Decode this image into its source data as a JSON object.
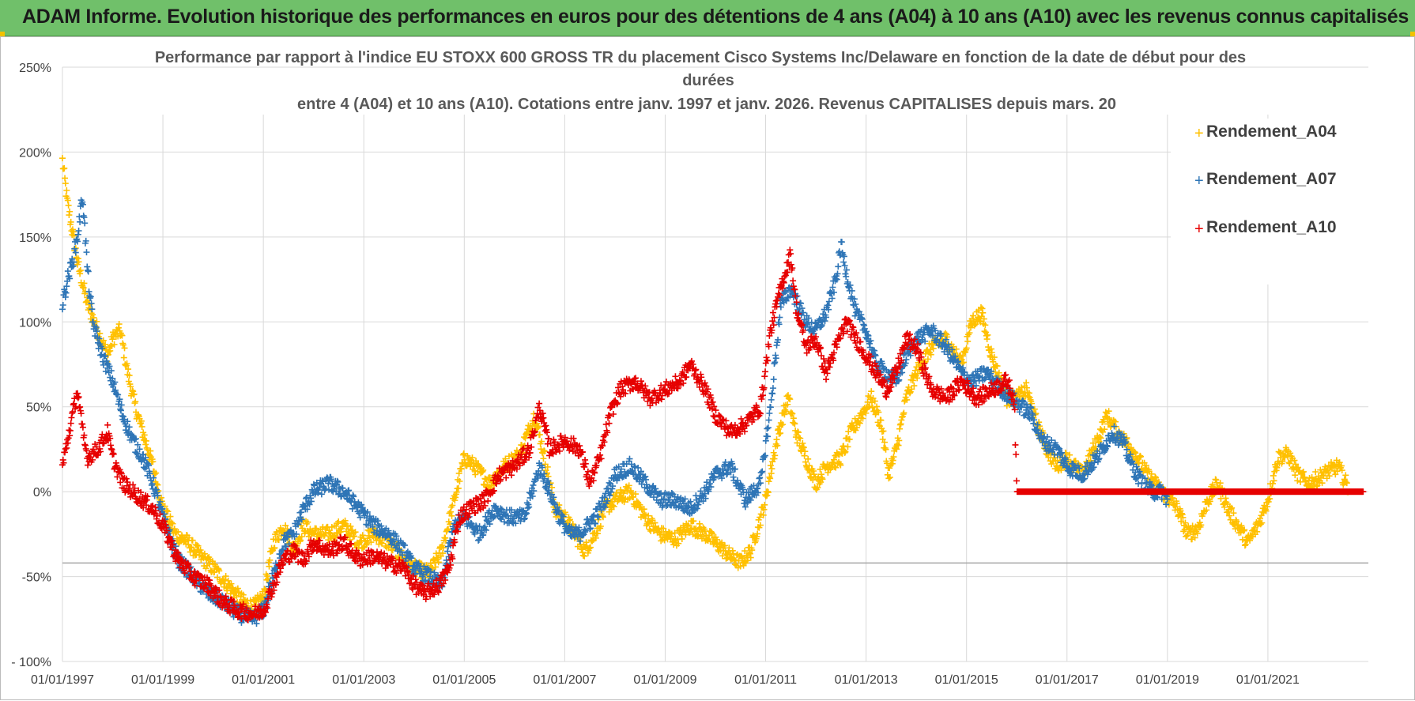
{
  "banner": {
    "title": "ADAM Informe. Evolution historique des performances en euros pour des détentions de 4 ans (A04) à 10 ans (A10) avec les revenus connus capitalisés"
  },
  "colors": {
    "banner_bg": "#70c06a",
    "A04": "#ffc000",
    "A07": "#2e75b6",
    "A10": "#e60000",
    "grid": "#d9d9d9"
  },
  "chart_data": {
    "type": "scatter",
    "title_lines": [
      "Performance par rapport à l'indice EU STOXX 600 GROSS TR  du placement Cisco Systems Inc/Delaware en fonction de la date de début pour des",
      "durées",
      "entre 4 (A04) et 10 ans (A10). Cotations entre janv. 1997 et janv. 2026. Revenus CAPITALISES depuis mars. 20"
    ],
    "xlabel": "",
    "ylabel": "",
    "x_range": [
      1997.0,
      2023.0
    ],
    "x_ticks": [
      1997,
      1999,
      2001,
      2003,
      2005,
      2007,
      2009,
      2011,
      2013,
      2015,
      2017,
      2019,
      2021
    ],
    "x_tick_labels": [
      "01/01/1997",
      "01/01/1999",
      "01/01/2001",
      "01/01/2003",
      "01/01/2005",
      "01/01/2007",
      "01/01/2009",
      "01/01/2011",
      "01/01/2013",
      "01/01/2015",
      "01/01/2017",
      "01/01/2019",
      "01/01/2021"
    ],
    "ylim": [
      -100,
      250
    ],
    "y_ticks": [
      -100,
      -50,
      0,
      50,
      100,
      150,
      200,
      250
    ],
    "y_tick_labels": [
      "- 100%",
      "-50%",
      "0%",
      "50%",
      "100%",
      "150%",
      "200%",
      "250%"
    ],
    "reference_line_y": -42,
    "grid": true,
    "legend_position": "top-right",
    "series": [
      {
        "name": "Rendement_A04",
        "color": "#ffc000",
        "anchors": [
          [
            1997.0,
            195
          ],
          [
            1997.1,
            170
          ],
          [
            1997.3,
            135
          ],
          [
            1997.5,
            110
          ],
          [
            1997.7,
            95
          ],
          [
            1997.9,
            80
          ],
          [
            1998.0,
            90
          ],
          [
            1998.15,
            95
          ],
          [
            1998.3,
            70
          ],
          [
            1998.45,
            50
          ],
          [
            1998.6,
            35
          ],
          [
            1998.8,
            15
          ],
          [
            1999.0,
            -10
          ],
          [
            1999.25,
            -25
          ],
          [
            1999.5,
            -30
          ],
          [
            1999.75,
            -38
          ],
          [
            2000.0,
            -45
          ],
          [
            2000.3,
            -55
          ],
          [
            2000.6,
            -65
          ],
          [
            2000.8,
            -68
          ],
          [
            2001.0,
            -62
          ],
          [
            2001.2,
            -30
          ],
          [
            2001.4,
            -20
          ],
          [
            2001.6,
            -35
          ],
          [
            2001.8,
            -20
          ],
          [
            2002.0,
            -25
          ],
          [
            2002.3,
            -25
          ],
          [
            2002.6,
            -20
          ],
          [
            2002.9,
            -30
          ],
          [
            2003.2,
            -25
          ],
          [
            2003.5,
            -30
          ],
          [
            2003.8,
            -40
          ],
          [
            2004.0,
            -45
          ],
          [
            2004.3,
            -48
          ],
          [
            2004.55,
            -35
          ],
          [
            2004.8,
            -5
          ],
          [
            2005.0,
            20
          ],
          [
            2005.2,
            15
          ],
          [
            2005.5,
            5
          ],
          [
            2005.8,
            15
          ],
          [
            2006.1,
            22
          ],
          [
            2006.4,
            45
          ],
          [
            2006.6,
            20
          ],
          [
            2006.8,
            -10
          ],
          [
            2007.0,
            -15
          ],
          [
            2007.2,
            -25
          ],
          [
            2007.4,
            -35
          ],
          [
            2007.6,
            -25
          ],
          [
            2007.8,
            -10
          ],
          [
            2008.0,
            -5
          ],
          [
            2008.3,
            0
          ],
          [
            2008.6,
            -15
          ],
          [
            2008.9,
            -25
          ],
          [
            2009.2,
            -28
          ],
          [
            2009.5,
            -20
          ],
          [
            2009.8,
            -25
          ],
          [
            2010.0,
            -30
          ],
          [
            2010.3,
            -38
          ],
          [
            2010.5,
            -42
          ],
          [
            2010.7,
            -35
          ],
          [
            2010.9,
            -15
          ],
          [
            2011.0,
            -5
          ],
          [
            2011.15,
            20
          ],
          [
            2011.3,
            40
          ],
          [
            2011.45,
            55
          ],
          [
            2011.6,
            35
          ],
          [
            2011.8,
            20
          ],
          [
            2012.0,
            5
          ],
          [
            2012.2,
            15
          ],
          [
            2012.5,
            20
          ],
          [
            2012.7,
            35
          ],
          [
            2012.9,
            45
          ],
          [
            2013.1,
            55
          ],
          [
            2013.3,
            40
          ],
          [
            2013.45,
            10
          ],
          [
            2013.6,
            25
          ],
          [
            2013.8,
            55
          ],
          [
            2014.0,
            70
          ],
          [
            2014.3,
            85
          ],
          [
            2014.6,
            90
          ],
          [
            2014.9,
            75
          ],
          [
            2015.1,
            100
          ],
          [
            2015.3,
            105
          ],
          [
            2015.5,
            80
          ],
          [
            2015.8,
            55
          ],
          [
            2016.0,
            55
          ],
          [
            2016.2,
            60
          ],
          [
            2016.4,
            40
          ],
          [
            2016.6,
            25
          ],
          [
            2016.8,
            15
          ],
          [
            2017.0,
            20
          ],
          [
            2017.3,
            10
          ],
          [
            2017.6,
            30
          ],
          [
            2017.8,
            45
          ],
          [
            2018.0,
            35
          ],
          [
            2018.3,
            25
          ],
          [
            2018.6,
            10
          ],
          [
            2018.9,
            0
          ],
          [
            2019.2,
            -10
          ],
          [
            2019.4,
            -25
          ],
          [
            2019.6,
            -22
          ],
          [
            2019.8,
            -5
          ],
          [
            2020.0,
            5
          ],
          [
            2020.2,
            -10
          ],
          [
            2020.4,
            -20
          ],
          [
            2020.6,
            -30
          ],
          [
            2020.8,
            -20
          ],
          [
            2021.0,
            -5
          ],
          [
            2021.2,
            20
          ],
          [
            2021.4,
            22
          ],
          [
            2021.6,
            10
          ],
          [
            2021.8,
            5
          ],
          [
            2022.0,
            8
          ],
          [
            2022.2,
            12
          ],
          [
            2022.4,
            15
          ],
          [
            2022.6,
            2
          ]
        ]
      },
      {
        "name": "Rendement_A07",
        "color": "#2e75b6",
        "anchors": [
          [
            1997.0,
            110
          ],
          [
            1997.1,
            125
          ],
          [
            1997.2,
            135
          ],
          [
            1997.3,
            150
          ],
          [
            1997.4,
            175
          ],
          [
            1997.5,
            130
          ],
          [
            1997.6,
            100
          ],
          [
            1997.8,
            80
          ],
          [
            1998.0,
            65
          ],
          [
            1998.2,
            45
          ],
          [
            1998.4,
            30
          ],
          [
            1998.6,
            20
          ],
          [
            1998.8,
            5
          ],
          [
            1999.0,
            -15
          ],
          [
            1999.3,
            -40
          ],
          [
            1999.6,
            -50
          ],
          [
            1999.9,
            -60
          ],
          [
            2000.2,
            -65
          ],
          [
            2000.5,
            -72
          ],
          [
            2000.8,
            -75
          ],
          [
            2001.0,
            -70
          ],
          [
            2001.2,
            -50
          ],
          [
            2001.4,
            -30
          ],
          [
            2001.6,
            -25
          ],
          [
            2001.8,
            -10
          ],
          [
            2002.0,
            0
          ],
          [
            2002.3,
            5
          ],
          [
            2002.6,
            0
          ],
          [
            2002.9,
            -10
          ],
          [
            2003.2,
            -20
          ],
          [
            2003.5,
            -25
          ],
          [
            2003.8,
            -35
          ],
          [
            2004.0,
            -45
          ],
          [
            2004.3,
            -50
          ],
          [
            2004.55,
            -55
          ],
          [
            2004.8,
            -20
          ],
          [
            2005.0,
            -15
          ],
          [
            2005.3,
            -25
          ],
          [
            2005.6,
            -10
          ],
          [
            2005.9,
            -15
          ],
          [
            2006.2,
            -15
          ],
          [
            2006.5,
            15
          ],
          [
            2006.7,
            0
          ],
          [
            2006.9,
            -15
          ],
          [
            2007.1,
            -25
          ],
          [
            2007.3,
            -25
          ],
          [
            2007.6,
            -15
          ],
          [
            2007.8,
            -5
          ],
          [
            2008.0,
            10
          ],
          [
            2008.3,
            15
          ],
          [
            2008.6,
            5
          ],
          [
            2008.9,
            -5
          ],
          [
            2009.2,
            -5
          ],
          [
            2009.5,
            -10
          ],
          [
            2009.8,
            0
          ],
          [
            2010.0,
            10
          ],
          [
            2010.3,
            15
          ],
          [
            2010.6,
            -5
          ],
          [
            2010.9,
            5
          ],
          [
            2011.1,
            50
          ],
          [
            2011.3,
            110
          ],
          [
            2011.5,
            120
          ],
          [
            2011.8,
            100
          ],
          [
            2012.0,
            95
          ],
          [
            2012.2,
            105
          ],
          [
            2012.4,
            125
          ],
          [
            2012.5,
            145
          ],
          [
            2012.6,
            130
          ],
          [
            2012.8,
            105
          ],
          [
            2013.0,
            95
          ],
          [
            2013.2,
            75
          ],
          [
            2013.4,
            70
          ],
          [
            2013.6,
            65
          ],
          [
            2013.8,
            80
          ],
          [
            2014.0,
            90
          ],
          [
            2014.3,
            95
          ],
          [
            2014.6,
            85
          ],
          [
            2014.9,
            70
          ],
          [
            2015.1,
            65
          ],
          [
            2015.4,
            70
          ],
          [
            2015.7,
            60
          ],
          [
            2015.9,
            55
          ],
          [
            2016.1,
            50
          ],
          [
            2016.3,
            45
          ],
          [
            2016.5,
            30
          ],
          [
            2016.8,
            25
          ],
          [
            2017.0,
            15
          ],
          [
            2017.3,
            10
          ],
          [
            2017.6,
            20
          ],
          [
            2017.9,
            35
          ],
          [
            2018.1,
            30
          ],
          [
            2018.3,
            15
          ],
          [
            2018.5,
            5
          ],
          [
            2018.7,
            0
          ],
          [
            2018.9,
            0
          ],
          [
            2019.0,
            -5
          ]
        ]
      },
      {
        "name": "Rendement_A10",
        "color": "#e60000",
        "anchors": [
          [
            1997.0,
            15
          ],
          [
            1997.1,
            30
          ],
          [
            1997.2,
            45
          ],
          [
            1997.3,
            60
          ],
          [
            1997.4,
            35
          ],
          [
            1997.5,
            20
          ],
          [
            1997.7,
            25
          ],
          [
            1997.9,
            35
          ],
          [
            1998.0,
            20
          ],
          [
            1998.2,
            5
          ],
          [
            1998.4,
            0
          ],
          [
            1998.6,
            -5
          ],
          [
            1998.8,
            -10
          ],
          [
            1999.0,
            -20
          ],
          [
            1999.3,
            -40
          ],
          [
            1999.6,
            -50
          ],
          [
            1999.9,
            -55
          ],
          [
            2000.2,
            -65
          ],
          [
            2000.5,
            -70
          ],
          [
            2000.8,
            -72
          ],
          [
            2001.0,
            -70
          ],
          [
            2001.2,
            -55
          ],
          [
            2001.4,
            -40
          ],
          [
            2001.6,
            -35
          ],
          [
            2001.8,
            -40
          ],
          [
            2002.0,
            -30
          ],
          [
            2002.3,
            -35
          ],
          [
            2002.6,
            -30
          ],
          [
            2002.9,
            -40
          ],
          [
            2003.2,
            -38
          ],
          [
            2003.5,
            -42
          ],
          [
            2003.8,
            -45
          ],
          [
            2004.0,
            -55
          ],
          [
            2004.2,
            -60
          ],
          [
            2004.5,
            -55
          ],
          [
            2004.7,
            -45
          ],
          [
            2004.9,
            -15
          ],
          [
            2005.1,
            -10
          ],
          [
            2005.4,
            -5
          ],
          [
            2005.7,
            10
          ],
          [
            2006.0,
            15
          ],
          [
            2006.3,
            25
          ],
          [
            2006.5,
            50
          ],
          [
            2006.7,
            25
          ],
          [
            2007.0,
            30
          ],
          [
            2007.3,
            25
          ],
          [
            2007.5,
            5
          ],
          [
            2007.7,
            20
          ],
          [
            2007.9,
            45
          ],
          [
            2008.1,
            60
          ],
          [
            2008.4,
            65
          ],
          [
            2008.7,
            55
          ],
          [
            2009.0,
            60
          ],
          [
            2009.3,
            65
          ],
          [
            2009.5,
            75
          ],
          [
            2009.8,
            60
          ],
          [
            2010.0,
            45
          ],
          [
            2010.3,
            35
          ],
          [
            2010.6,
            40
          ],
          [
            2010.9,
            50
          ],
          [
            2011.1,
            95
          ],
          [
            2011.3,
            120
          ],
          [
            2011.5,
            140
          ],
          [
            2011.6,
            110
          ],
          [
            2011.8,
            85
          ],
          [
            2012.0,
            90
          ],
          [
            2012.2,
            70
          ],
          [
            2012.4,
            85
          ],
          [
            2012.6,
            100
          ],
          [
            2012.8,
            90
          ],
          [
            2013.0,
            80
          ],
          [
            2013.2,
            70
          ],
          [
            2013.4,
            60
          ],
          [
            2013.6,
            70
          ],
          [
            2013.8,
            90
          ],
          [
            2014.0,
            85
          ],
          [
            2014.3,
            60
          ],
          [
            2014.6,
            55
          ],
          [
            2014.9,
            65
          ],
          [
            2015.2,
            55
          ],
          [
            2015.5,
            60
          ],
          [
            2015.8,
            65
          ],
          [
            2015.95,
            55
          ],
          [
            2016.0,
            0
          ],
          [
            2022.9,
            0
          ]
        ]
      }
    ]
  },
  "legend": {
    "items": [
      "Rendement_A04",
      "Rendement_A07",
      "Rendement_A10"
    ]
  }
}
